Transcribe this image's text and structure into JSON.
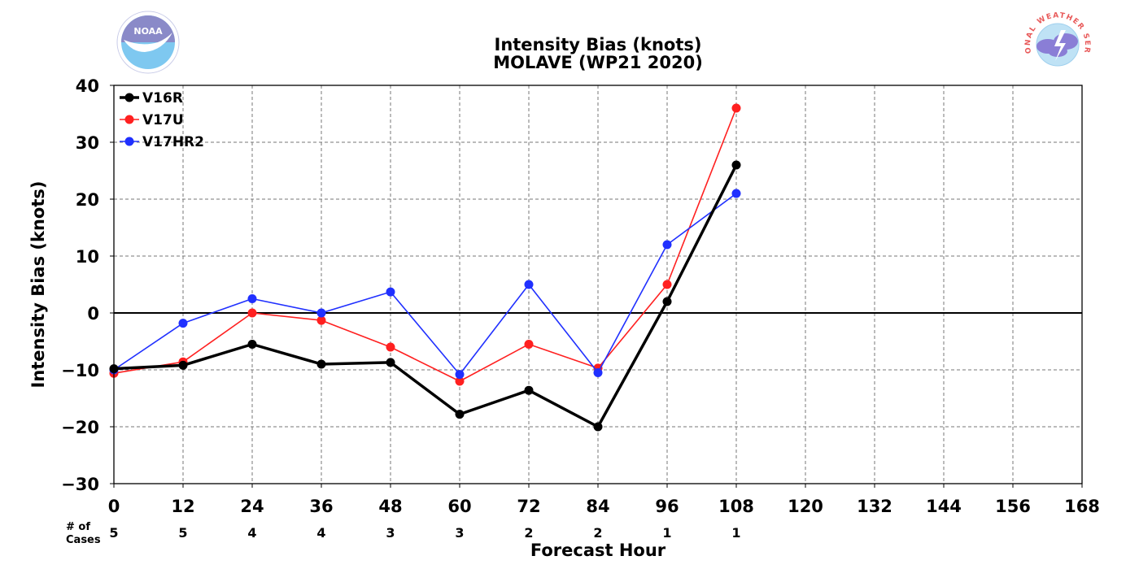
{
  "chart_data": {
    "type": "line",
    "title": "Intensity Bias (knots)",
    "subtitle": "MOLAVE (WP21 2020)",
    "xlabel": "Forecast Hour",
    "ylabel": "Intensity Bias (knots)",
    "xlim": [
      0,
      168
    ],
    "ylim": [
      -30,
      40
    ],
    "x_ticks": [
      0,
      12,
      24,
      36,
      48,
      60,
      72,
      84,
      96,
      108,
      120,
      132,
      144,
      156,
      168
    ],
    "y_ticks": [
      40,
      30,
      20,
      10,
      0,
      -10,
      -20,
      -30
    ],
    "y_tick_labels": [
      "40",
      "30",
      "20",
      "10",
      "0",
      "−10",
      "−20",
      "−30"
    ],
    "grid": true,
    "legend_position": "top-left",
    "cases_header": [
      "# of",
      "Cases"
    ],
    "cases": [
      {
        "x": 0,
        "n": "5"
      },
      {
        "x": 12,
        "n": "5"
      },
      {
        "x": 24,
        "n": "4"
      },
      {
        "x": 36,
        "n": "4"
      },
      {
        "x": 48,
        "n": "3"
      },
      {
        "x": 60,
        "n": "3"
      },
      {
        "x": 72,
        "n": "2"
      },
      {
        "x": 84,
        "n": "2"
      },
      {
        "x": 96,
        "n": "1"
      },
      {
        "x": 108,
        "n": "1"
      }
    ],
    "x": [
      0,
      12,
      24,
      36,
      48,
      60,
      72,
      84,
      96,
      108
    ],
    "series": [
      {
        "name": "V16R",
        "color": "#000000",
        "width": 3.5,
        "values": [
          -9.8,
          -9.2,
          -5.5,
          -9.0,
          -8.7,
          -17.8,
          -13.6,
          -20.0,
          2.0,
          26.0
        ]
      },
      {
        "name": "V17U",
        "color": "#ff2020",
        "width": 1.6,
        "values": [
          -10.6,
          -8.6,
          0.0,
          -1.3,
          -6.0,
          -12.0,
          -5.5,
          -9.7,
          5.0,
          36.0
        ]
      },
      {
        "name": "V17HR2",
        "color": "#2030ff",
        "width": 1.6,
        "values": [
          -10.0,
          -1.8,
          2.5,
          0.0,
          3.7,
          -10.8,
          5.0,
          -10.5,
          12.0,
          21.0
        ]
      }
    ]
  },
  "logos": {
    "noaa": {
      "label": "NOAA",
      "icon": "noaa-logo"
    },
    "nws": {
      "label": "NATIONAL WEATHER SERVICE",
      "icon": "nws-logo"
    }
  }
}
